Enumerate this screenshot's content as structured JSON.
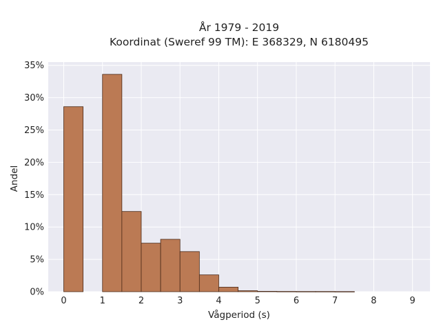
{
  "chart_data": {
    "type": "bar",
    "title_line1": "År 1979 - 2019",
    "title_line2": "Koordinat (Sweref 99 TM): E 368329, N 6180495",
    "xlabel": "Vågperiod (s)",
    "ylabel": "Andel",
    "xlim": [
      -0.4,
      9.45
    ],
    "ylim": [
      0,
      35.5
    ],
    "x_ticks": [
      0,
      1,
      2,
      3,
      4,
      5,
      6,
      7,
      8,
      9
    ],
    "y_ticks": [
      {
        "value": 0,
        "label": "0%"
      },
      {
        "value": 5,
        "label": "5%"
      },
      {
        "value": 10,
        "label": "10%"
      },
      {
        "value": 15,
        "label": "15%"
      },
      {
        "value": 20,
        "label": "20%"
      },
      {
        "value": 25,
        "label": "25%"
      },
      {
        "value": 30,
        "label": "30%"
      },
      {
        "value": 35,
        "label": "35%"
      }
    ],
    "grid": true,
    "bin_width": 0.5,
    "bins": [
      {
        "start": 0.0,
        "value": 28.6
      },
      {
        "start": 0.5,
        "value": 0.0
      },
      {
        "start": 1.0,
        "value": 33.6
      },
      {
        "start": 1.5,
        "value": 12.4
      },
      {
        "start": 2.0,
        "value": 7.5
      },
      {
        "start": 2.5,
        "value": 8.1
      },
      {
        "start": 3.0,
        "value": 6.2
      },
      {
        "start": 3.5,
        "value": 2.6
      },
      {
        "start": 4.0,
        "value": 0.7
      },
      {
        "start": 4.5,
        "value": 0.15
      },
      {
        "start": 5.0,
        "value": 0.06
      },
      {
        "start": 5.5,
        "value": 0.04
      },
      {
        "start": 6.0,
        "value": 0.03
      },
      {
        "start": 6.5,
        "value": 0.03
      },
      {
        "start": 7.0,
        "value": 0.02
      }
    ],
    "colors": {
      "bar_fill": "#bb7a54",
      "bar_stroke": "#4a2a18",
      "plot_background": "#eaeaf2",
      "grid": "#ffffff"
    }
  }
}
